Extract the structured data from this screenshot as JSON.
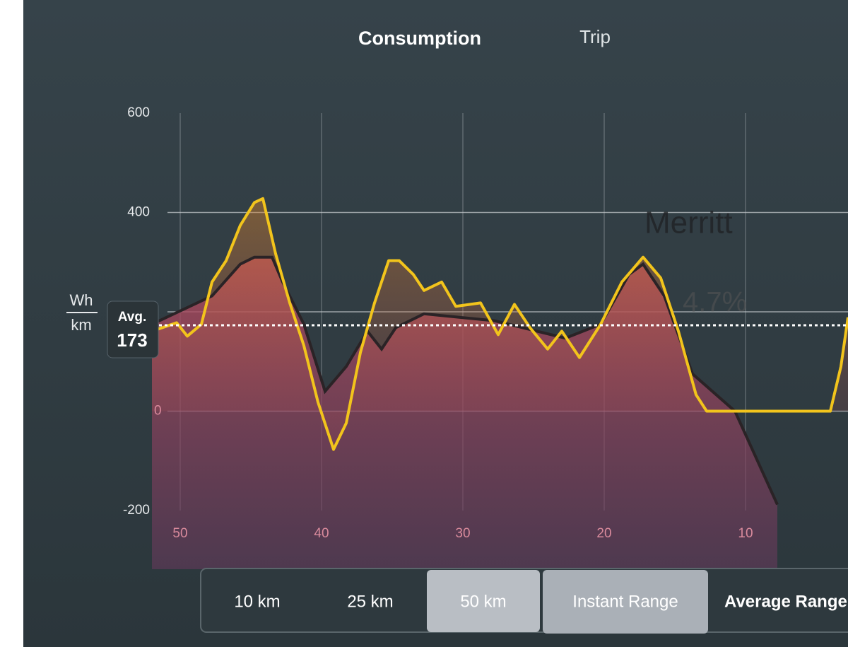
{
  "header": {
    "tabs": [
      "Consumption",
      "Trip"
    ]
  },
  "chart_data": {
    "type": "line",
    "y_unit_top": "Wh",
    "y_unit_bottom": "km",
    "avg_label": "Avg.",
    "avg_value": 173,
    "annotations": [
      "Merritt",
      "4.7%"
    ],
    "xlim": [
      52,
      2.75
    ],
    "xticks": [
      50,
      40,
      30,
      20,
      10
    ],
    "ylim": [
      -200,
      600
    ],
    "yticks": [
      -200,
      0,
      400,
      600
    ],
    "grid_values": [
      0,
      200,
      400
    ],
    "series": [
      {
        "color": "#f2c41c",
        "x": [
          52,
          50.25,
          49.5,
          48.5,
          47.75,
          46.75,
          45.75,
          44.75,
          44.15,
          43.25,
          42.25,
          41.25,
          40.25,
          39.15,
          38.25,
          37.25,
          36.25,
          35.25,
          34.5,
          33.5,
          32.75,
          31.5,
          30.5,
          28.75,
          27.5,
          26.35,
          25.25,
          24,
          23,
          21.75,
          20.25,
          18.75,
          17.25,
          16,
          14.75,
          13.5,
          12.75,
          4,
          3.25,
          2.75
        ],
        "values": [
          161,
          178,
          151,
          175,
          260,
          303,
          374,
          420,
          428,
          317,
          218,
          132,
          18,
          -77,
          -24,
          118,
          218,
          303,
          303,
          275,
          243,
          260,
          211,
          218,
          154,
          215,
          168,
          125,
          161,
          108,
          175,
          260,
          310,
          268,
          161,
          33,
          0,
          0,
          90,
          189
        ]
      },
      {
        "color": "#2a2326",
        "x": [
          52,
          47.75,
          45.75,
          44.75,
          43.5,
          42.75,
          41.25,
          39.75,
          38.25,
          36.75,
          35.75,
          34.75,
          32.75,
          30.25,
          27.75,
          22.75,
          20.25,
          18.25,
          17.25,
          15.75,
          13.75,
          10.75,
          7.75
        ],
        "values": [
          175,
          232,
          296,
          310,
          310,
          260,
          175,
          40,
          90,
          161,
          125,
          168,
          196,
          189,
          182,
          147,
          175,
          275,
          296,
          232,
          75,
          0,
          -188
        ]
      }
    ]
  },
  "footer": {
    "tabs": [
      "10 km",
      "25 km",
      "50 km",
      "Instant Range",
      "Average Range"
    ]
  }
}
